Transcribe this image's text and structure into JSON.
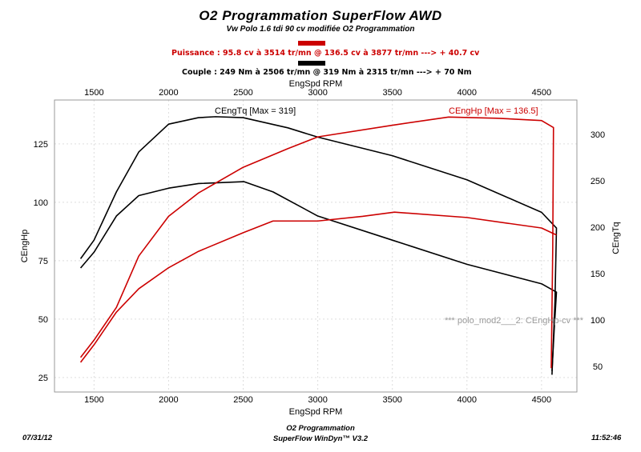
{
  "header": {
    "title": "O2 Programmation SuperFlow AWD",
    "subtitle": "Vw Polo 1.6 tdi 90 cv modifiée O2 Programmation",
    "power_line": "Puissance : 95.8 cv à 3514 tr/mn  @  136.5 cv à 3877 tr/mn    ---> + 40.7 cv",
    "torque_line": "Couple : 249 Nm à 2506 tr/mn  @  319 Nm à 2315 tr/mn    ---> + 70 Nm",
    "power_color": "#cc0000",
    "torque_color": "#000000"
  },
  "footer": {
    "date": "07/31/12",
    "company": "O2 Programmation",
    "software": "SuperFlow WinDyn™ V3.2",
    "time": "11:52:46"
  },
  "chart_data": {
    "type": "line",
    "xlabel": "EngSpd RPM",
    "xlabel_top": "EngSpd RPM",
    "ylabel_left": "CEngHp",
    "ylabel_right": "CEngTq",
    "xlim": [
      1235,
      4737
    ],
    "ylim_left": [
      18.8,
      143.8
    ],
    "ylim_right": [
      22.4,
      337
    ],
    "x_ticks": [
      1500,
      2000,
      2500,
      3000,
      3500,
      4000,
      4500
    ],
    "y_ticks_left": [
      25,
      50,
      75,
      100,
      125
    ],
    "y_ticks_right": [
      50,
      100,
      150,
      200,
      250,
      300
    ],
    "grid": true,
    "annotations": {
      "torque_max": "CEngTq [Max = 319]",
      "hp_max": "CEngHp [Max = 136.5]",
      "trace_label": "*** polo_mod2___2: CEngHp-cv     ***"
    },
    "series": [
      {
        "axis": "right",
        "color": "#000000",
        "x": [
          1410,
          1500,
          1650,
          1800,
          2000,
          2200,
          2315,
          2500,
          2800,
          3000,
          3500,
          4000,
          4500,
          4600,
          4590,
          4570
        ],
        "y": [
          166,
          186,
          238,
          281,
          311,
          318,
          319,
          318,
          307,
          297,
          277,
          251,
          216,
          199,
          120,
          41
        ]
      },
      {
        "axis": "right",
        "color": "#000000",
        "x": [
          1410,
          1500,
          1650,
          1800,
          2000,
          2200,
          2506,
          2700,
          3000,
          3500,
          4000,
          4500,
          4600,
          4585,
          4570
        ],
        "y": [
          156,
          173,
          212,
          234,
          242,
          247,
          249,
          238,
          212,
          186,
          160,
          139,
          130,
          90,
          45
        ]
      },
      {
        "axis": "left",
        "color": "#cc0000",
        "x": [
          1410,
          1500,
          1650,
          1800,
          2000,
          2200,
          2500,
          2800,
          3000,
          3500,
          3877,
          4200,
          4500,
          4580,
          4575,
          4565
        ],
        "y": [
          33.6,
          41,
          55,
          77,
          94,
          104,
          115,
          123,
          128,
          133,
          136.5,
          136,
          135,
          132,
          80,
          29
        ]
      },
      {
        "axis": "left",
        "color": "#cc0000",
        "x": [
          1410,
          1500,
          1650,
          1800,
          2000,
          2200,
          2500,
          2700,
          3000,
          3300,
          3514,
          4000,
          4500,
          4600
        ],
        "y": [
          31.5,
          39,
          53,
          63,
          72,
          79,
          87,
          92,
          92,
          94,
          95.8,
          93.5,
          89,
          86
        ]
      }
    ]
  }
}
